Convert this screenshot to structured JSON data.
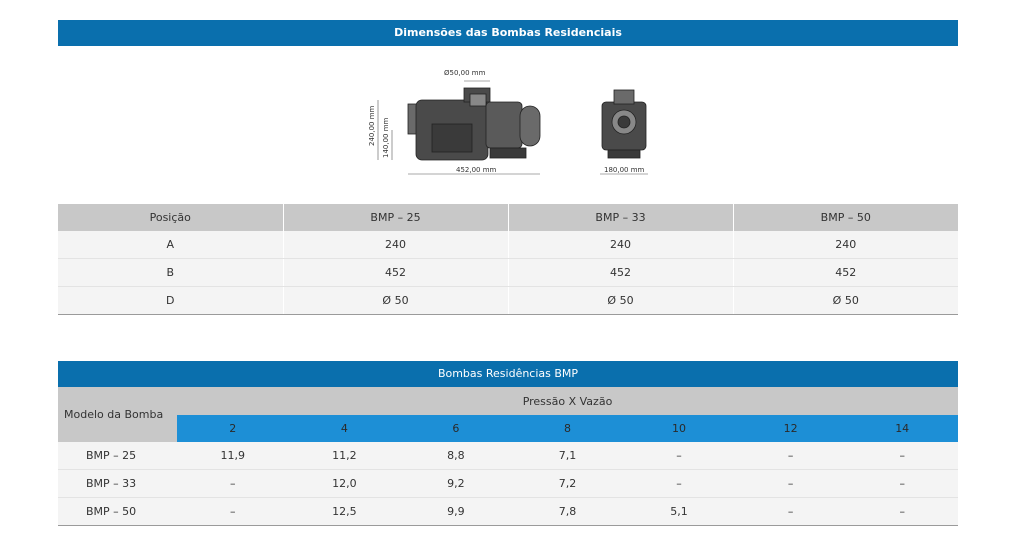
{
  "section1": {
    "title": "Dimensões das Bombas Residenciais",
    "diagram": {
      "dim_d": "Ø50,00 mm",
      "dim_a": "240,00 mm",
      "dim_c": "140,00 mm",
      "dim_b": "452,00 mm",
      "dim_w": "180,00 mm"
    },
    "table": {
      "headers": [
        "Posição",
        "BMP – 25",
        "BMP – 33",
        "BMP – 50"
      ],
      "rows": [
        [
          "A",
          "240",
          "240",
          "240"
        ],
        [
          "B",
          "452",
          "452",
          "452"
        ],
        [
          "D",
          "Ø 50",
          "Ø 50",
          "Ø 50"
        ]
      ]
    }
  },
  "section2": {
    "title": "Bombas Residências BMP",
    "model_header": "Modelo da Bomba",
    "group_header": "Pressão X Vazão",
    "pressures": [
      "2",
      "4",
      "6",
      "8",
      "10",
      "12",
      "14"
    ],
    "rows": [
      {
        "model": "BMP – 25",
        "values": [
          "11,9",
          "11,2",
          "8,8",
          "7,1",
          "–",
          "–",
          "–"
        ]
      },
      {
        "model": "BMP – 33",
        "values": [
          "–",
          "12,0",
          "9,2",
          "7,2",
          "–",
          "–",
          "–"
        ]
      },
      {
        "model": "BMP – 50",
        "values": [
          "–",
          "12,5",
          "9,9",
          "7,8",
          "5,1",
          "–",
          "–"
        ]
      }
    ]
  }
}
